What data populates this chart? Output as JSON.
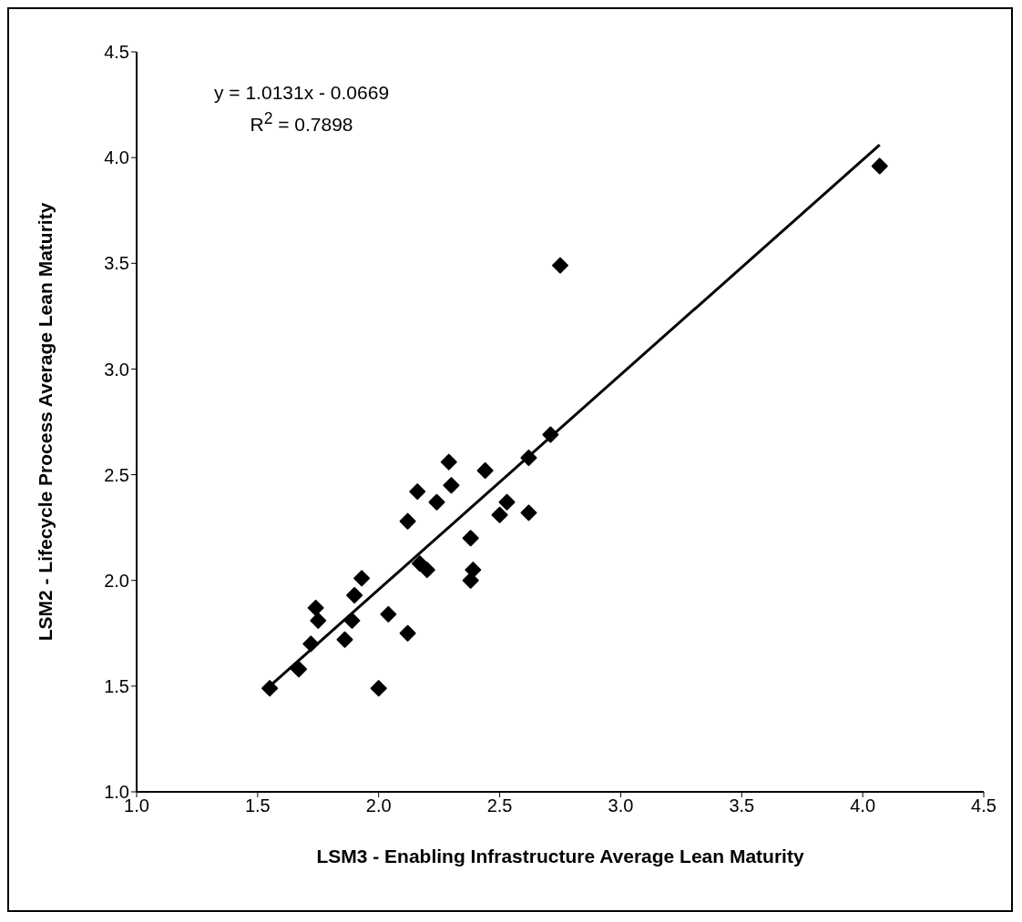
{
  "chart_data": {
    "type": "scatter",
    "xlabel": "LSM3 - Enabling Infrastructure Average Lean Maturity",
    "ylabel": "LSM2 - Lifecycle Process Average Lean Maturity",
    "annotations": [
      "y = 1.0131x - 0.0669",
      "R$^{2}$ = 0.7898"
    ],
    "xlim": [
      1.0,
      4.5
    ],
    "xticks": [
      {
        "value": 1.0,
        "label": "1.0"
      },
      {
        "value": 1.5,
        "label": "1.5"
      },
      {
        "value": 2.0,
        "label": "2.0"
      },
      {
        "value": 2.5,
        "label": "2.5"
      },
      {
        "value": 3.0,
        "label": "3.0"
      },
      {
        "value": 3.5,
        "label": "3.5"
      },
      {
        "value": 4.0,
        "label": "4.0"
      },
      {
        "value": 4.5,
        "label": "4.5"
      }
    ],
    "ylim": [
      1.0,
      4.5
    ],
    "yticks": [
      {
        "value": 1.0,
        "label": "1.0"
      },
      {
        "value": 1.5,
        "label": "1.5"
      },
      {
        "value": 2.0,
        "label": "2.0"
      },
      {
        "value": 2.5,
        "label": "2.5"
      },
      {
        "value": 3.0,
        "label": "3.0"
      },
      {
        "value": 3.5,
        "label": "3.5"
      },
      {
        "value": 4.0,
        "label": "4.0"
      },
      {
        "value": 4.5,
        "label": "4.5"
      }
    ],
    "marker": "diamond",
    "series": [
      {
        "color": "#000000",
        "x": [
          1.55,
          1.67,
          1.72,
          1.74,
          1.75,
          1.86,
          1.89,
          1.9,
          1.93,
          2.0,
          2.04,
          2.12,
          2.12,
          2.16,
          2.17,
          2.2,
          2.24,
          2.29,
          2.3,
          2.38,
          2.38,
          2.39,
          2.44,
          2.5,
          2.53,
          2.62,
          2.62,
          2.71,
          2.75,
          4.07
        ],
        "values": [
          1.49,
          1.58,
          1.7,
          1.87,
          1.81,
          1.72,
          1.81,
          1.93,
          2.01,
          1.49,
          1.84,
          2.28,
          1.75,
          2.42,
          2.08,
          2.05,
          2.37,
          2.56,
          2.45,
          2.2,
          2.0,
          2.05,
          2.52,
          2.31,
          2.37,
          2.58,
          2.32,
          2.69,
          3.49,
          3.96
        ]
      },
      {
        "type": "line",
        "color": "#000000",
        "marker": "none",
        "line_style": "solid",
        "x": [
          1.55,
          4.07
        ],
        "values": [
          1.5,
          4.06
        ]
      }
    ]
  }
}
